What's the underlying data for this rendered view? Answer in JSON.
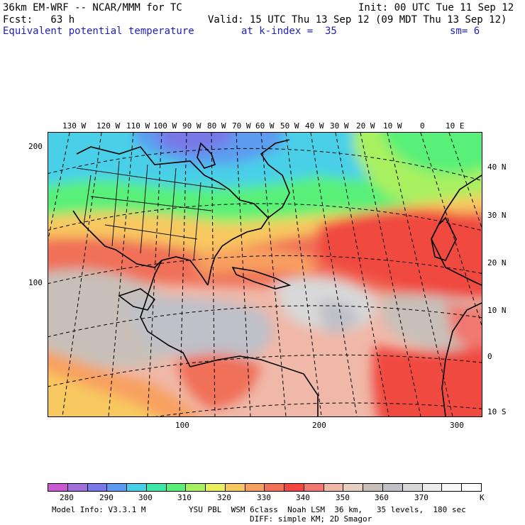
{
  "header": {
    "model": "36km EM-WRF -- NCAR/MMM for TC",
    "init": "Init: 00 UTC Tue 11 Sep 12",
    "fcst": "Fcst:   63 h",
    "valid": "Valid: 15 UTC Thu 13 Sep 12 (09 MDT Thu 13 Sep 12)",
    "field": "Equivalent potential temperature",
    "level": "at k-index =  35",
    "smooth": "sm= 6"
  },
  "longitude_labels": [
    "130 W",
    "120 W",
    "110 W",
    "100 W",
    "90 W",
    "80 W",
    "70 W",
    "60 W",
    "50 W",
    "40 W",
    "30 W",
    "20 W",
    "10 W",
    "0",
    "10 E"
  ],
  "latitude_labels": [
    "40 N",
    "30 N",
    "20 N",
    "10 N",
    "0",
    "10 S"
  ],
  "grid_y_labels": [
    "200",
    "100"
  ],
  "grid_x_labels": [
    "100",
    "200",
    "300"
  ],
  "colorbar": {
    "labels": [
      "280",
      "290",
      "300",
      "310",
      "320",
      "330",
      "340",
      "350",
      "360",
      "370"
    ],
    "unit": "K",
    "colors": [
      "#c85ad0",
      "#a070d8",
      "#7878e8",
      "#5c9cf0",
      "#48d0e8",
      "#40e8a8",
      "#58f078",
      "#a8f060",
      "#e8f060",
      "#f8c860",
      "#f8a060",
      "#f07058",
      "#f04840",
      "#f07870",
      "#f0b8a8",
      "#e8d0c0",
      "#c8c0b8",
      "#c0c0c8",
      "#d8d8d8",
      "#ececec",
      "#f8f8f8",
      "#ffffff"
    ]
  },
  "footer": {
    "model_info": "Model Info: V3.3.1 M",
    "physics": "YSU PBL  WSM 6class  Noah LSM  36 km,   35 levels,  180 sec",
    "diffusion": "DIFF: simple KM; 2D Smagor"
  }
}
